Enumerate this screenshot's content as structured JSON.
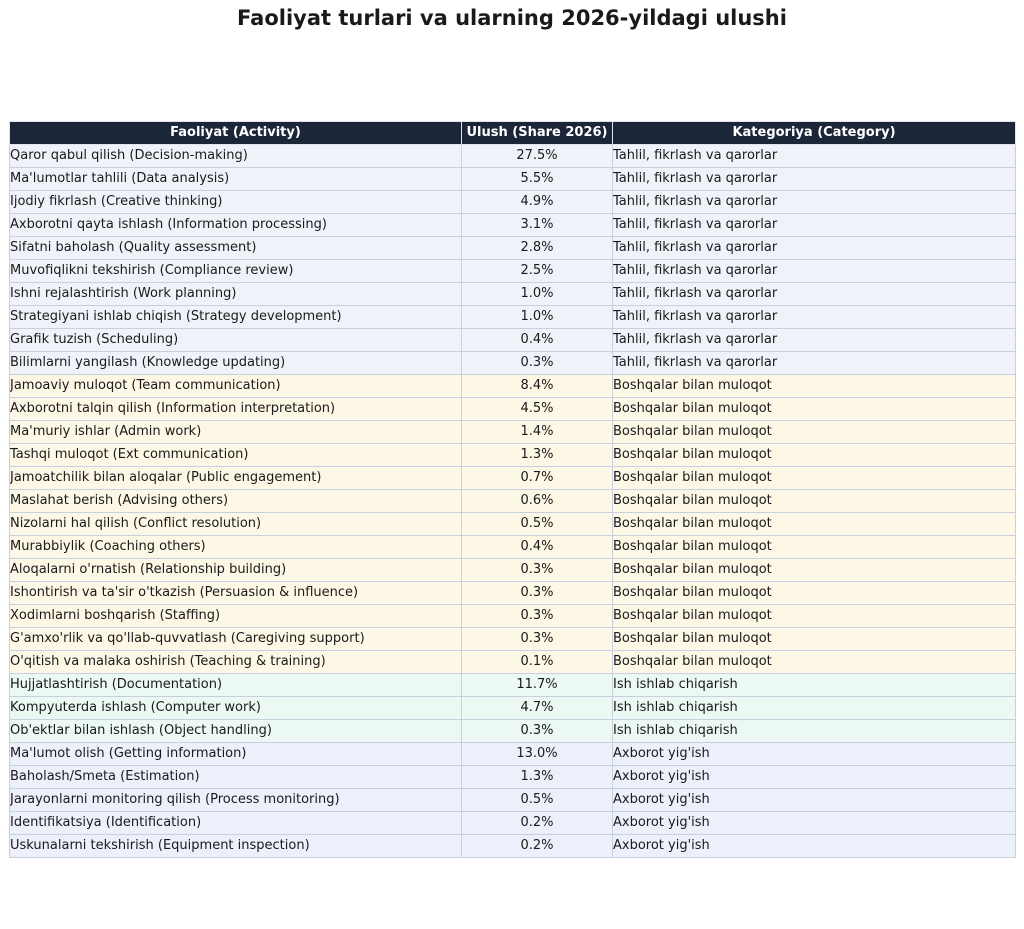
{
  "colors": {
    "header_bg": "#1c2639",
    "header_text": "#ffffff",
    "border": "#c8d0dd",
    "category_bg": {
      "Tahlil, fikrlash va qarorlar": "#eff3f9",
      "Boshqalar bilan muloqot": "#fdf7e6",
      "Ish ishlab chiqarish": "#ebf8f4",
      "Axborot yig'ish": "#ecf0fa"
    }
  },
  "chart_data": {
    "type": "table",
    "title": "Faoliyat turlari va ularning 2026-yildagi ulushi",
    "columns": [
      "Faoliyat (Activity)",
      "Ulush (Share 2026)",
      "Kategoriya (Category)"
    ],
    "rows": [
      [
        "Qaror qabul qilish (Decision-making)",
        "27.5%",
        "Tahlil, fikrlash va qarorlar"
      ],
      [
        "Ma'lumotlar tahlili (Data analysis)",
        "5.5%",
        "Tahlil, fikrlash va qarorlar"
      ],
      [
        "Ijodiy fikrlash (Creative thinking)",
        "4.9%",
        "Tahlil, fikrlash va qarorlar"
      ],
      [
        "Axborotni qayta ishlash (Information processing)",
        "3.1%",
        "Tahlil, fikrlash va qarorlar"
      ],
      [
        "Sifatni baholash (Quality assessment)",
        "2.8%",
        "Tahlil, fikrlash va qarorlar"
      ],
      [
        "Muvofiqlikni tekshirish (Compliance review)",
        "2.5%",
        "Tahlil, fikrlash va qarorlar"
      ],
      [
        "Ishni rejalashtirish (Work planning)",
        "1.0%",
        "Tahlil, fikrlash va qarorlar"
      ],
      [
        "Strategiyani ishlab chiqish (Strategy development)",
        "1.0%",
        "Tahlil, fikrlash va qarorlar"
      ],
      [
        "Grafik tuzish (Scheduling)",
        "0.4%",
        "Tahlil, fikrlash va qarorlar"
      ],
      [
        "Bilimlarni yangilash (Knowledge updating)",
        "0.3%",
        "Tahlil, fikrlash va qarorlar"
      ],
      [
        "Jamoaviy muloqot (Team communication)",
        "8.4%",
        "Boshqalar bilan muloqot"
      ],
      [
        "Axborotni talqin qilish (Information interpretation)",
        "4.5%",
        "Boshqalar bilan muloqot"
      ],
      [
        "Ma'muriy ishlar (Admin work)",
        "1.4%",
        "Boshqalar bilan muloqot"
      ],
      [
        "Tashqi muloqot (Ext communication)",
        "1.3%",
        "Boshqalar bilan muloqot"
      ],
      [
        "Jamoatchilik bilan aloqalar (Public engagement)",
        "0.7%",
        "Boshqalar bilan muloqot"
      ],
      [
        "Maslahat berish (Advising others)",
        "0.6%",
        "Boshqalar bilan muloqot"
      ],
      [
        "Nizolarni hal qilish (Conflict resolution)",
        "0.5%",
        "Boshqalar bilan muloqot"
      ],
      [
        "Murabbiylik (Coaching others)",
        "0.4%",
        "Boshqalar bilan muloqot"
      ],
      [
        "Aloqalarni o'rnatish (Relationship building)",
        "0.3%",
        "Boshqalar bilan muloqot"
      ],
      [
        "Ishontirish va ta'sir o'tkazish (Persuasion & influence)",
        "0.3%",
        "Boshqalar bilan muloqot"
      ],
      [
        "Xodimlarni boshqarish (Staffing)",
        "0.3%",
        "Boshqalar bilan muloqot"
      ],
      [
        "G'amxo'rlik va qo'llab-quvvatlash (Caregiving support)",
        "0.3%",
        "Boshqalar bilan muloqot"
      ],
      [
        "O'qitish va malaka oshirish (Teaching & training)",
        "0.1%",
        "Boshqalar bilan muloqot"
      ],
      [
        "Hujjatlashtirish (Documentation)",
        "11.7%",
        "Ish ishlab chiqarish"
      ],
      [
        "Kompyuterda ishlash (Computer work)",
        "4.7%",
        "Ish ishlab chiqarish"
      ],
      [
        "Ob'ektlar bilan ishlash (Object handling)",
        "0.3%",
        "Ish ishlab chiqarish"
      ],
      [
        "Ma'lumot olish (Getting information)",
        "13.0%",
        "Axborot yig'ish"
      ],
      [
        "Baholash/Smeta (Estimation)",
        "1.3%",
        "Axborot yig'ish"
      ],
      [
        "Jarayonlarni monitoring qilish (Process monitoring)",
        "0.5%",
        "Axborot yig'ish"
      ],
      [
        "Identifikatsiya (Identification)",
        "0.2%",
        "Axborot yig'ish"
      ],
      [
        "Uskunalarni tekshirish (Equipment inspection)",
        "0.2%",
        "Axborot yig'ish"
      ]
    ]
  }
}
